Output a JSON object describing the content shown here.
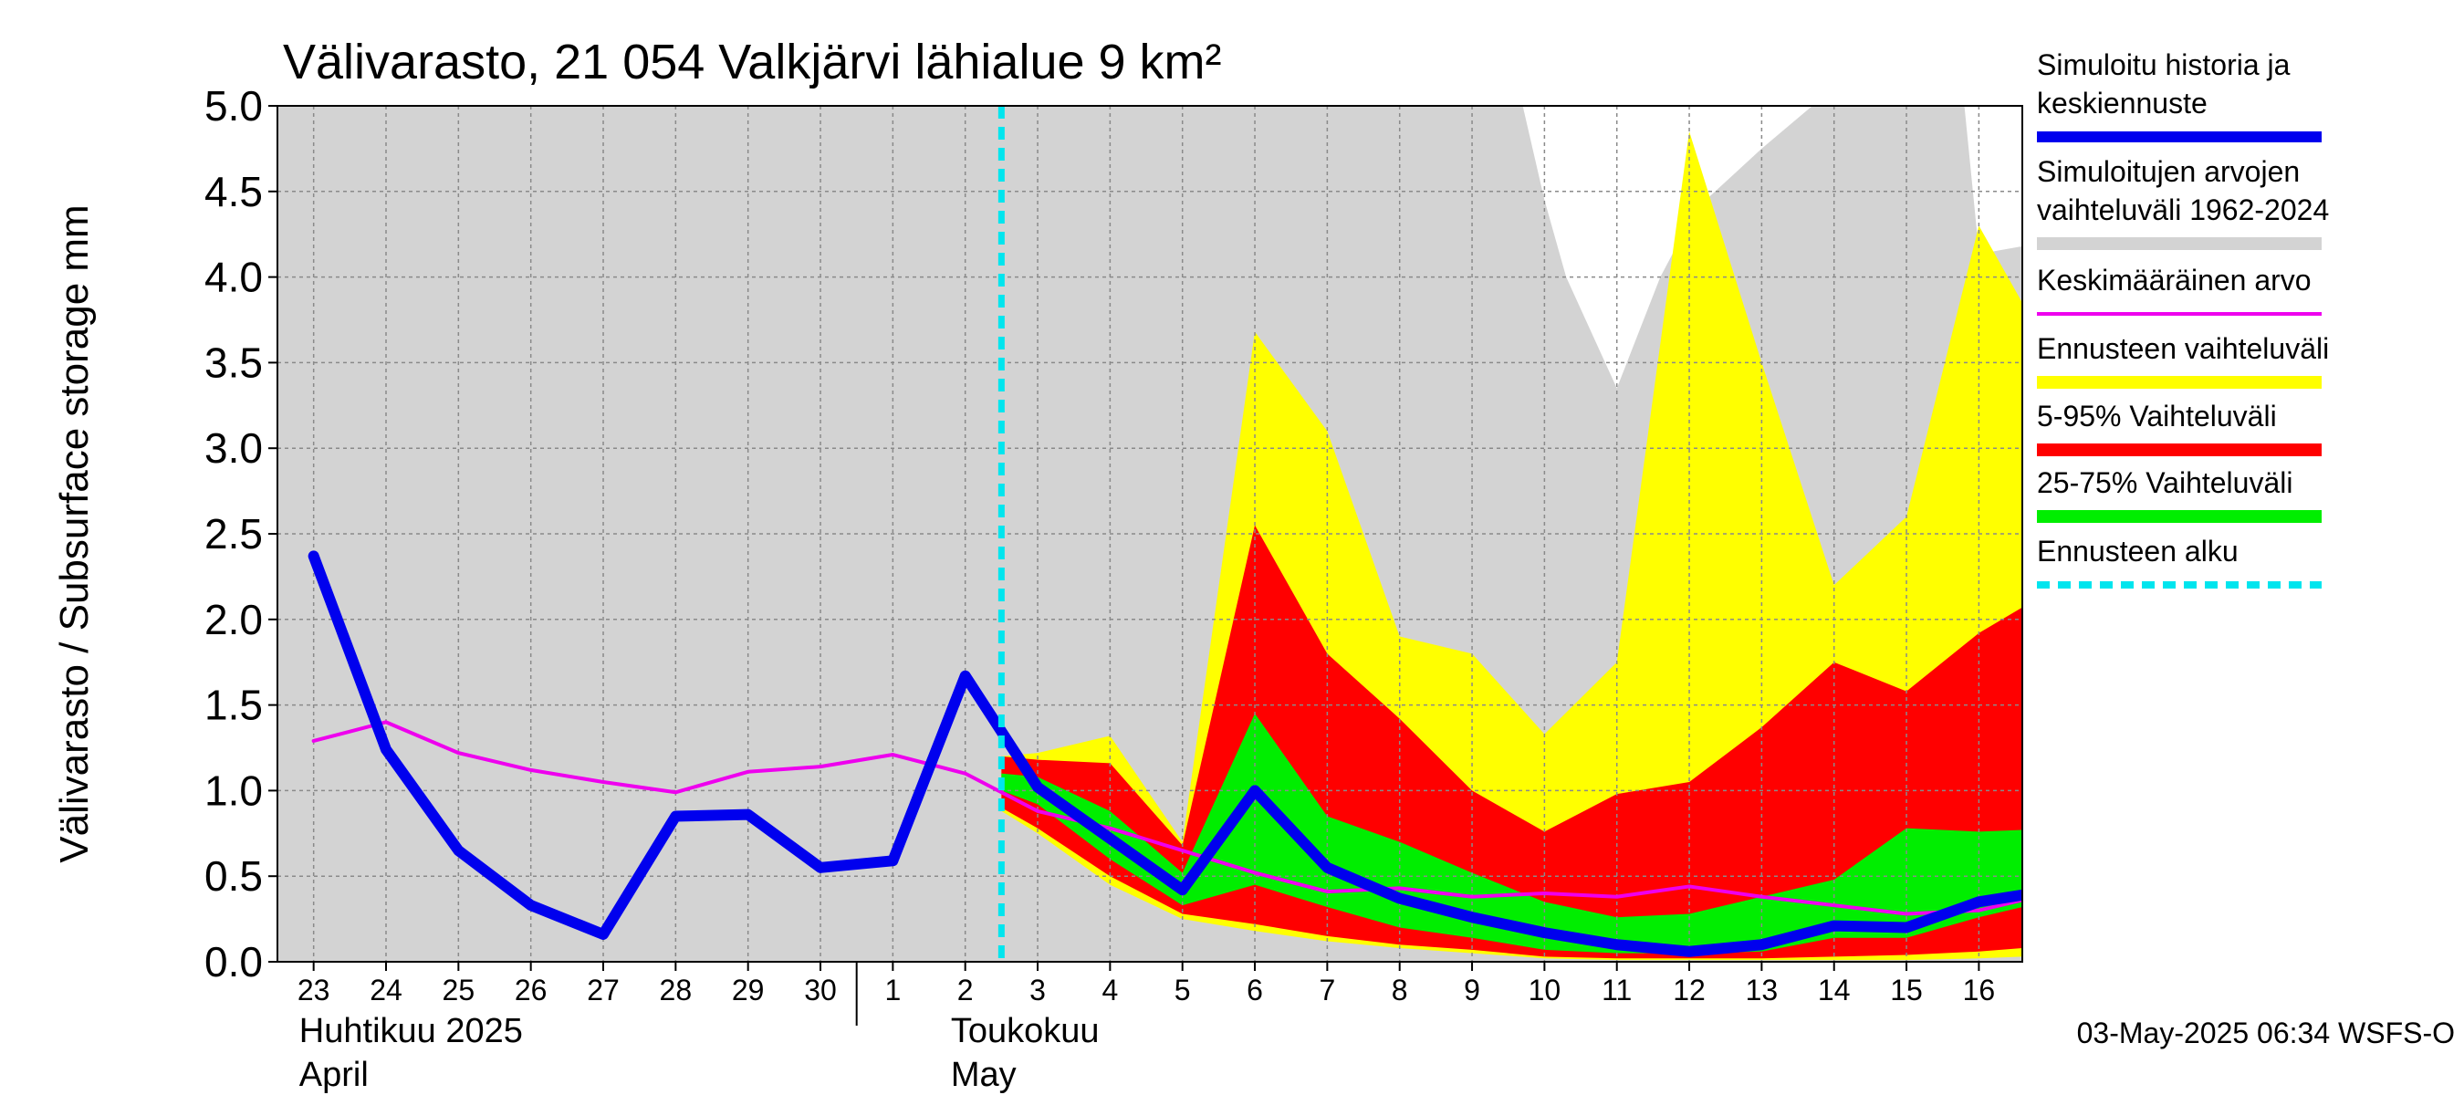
{
  "chart_data": {
    "type": "area",
    "title": "Välivarasto, 21 054 Valkjärvi lähialue 9 km²",
    "ylabel": "Välivarasto / Subsurface storage  mm",
    "ylim": [
      0.0,
      5.0
    ],
    "yticks": [
      "0.0",
      "0.5",
      "1.0",
      "1.5",
      "2.0",
      "2.5",
      "3.0",
      "3.5",
      "4.0",
      "4.5",
      "5.0"
    ],
    "xlim": [
      -0.5,
      23.6
    ],
    "xticks": [
      {
        "x": 0,
        "label": "23"
      },
      {
        "x": 1,
        "label": "24"
      },
      {
        "x": 2,
        "label": "25"
      },
      {
        "x": 3,
        "label": "26"
      },
      {
        "x": 4,
        "label": "27"
      },
      {
        "x": 5,
        "label": "28"
      },
      {
        "x": 6,
        "label": "29"
      },
      {
        "x": 7,
        "label": "30"
      },
      {
        "x": 8,
        "label": "1"
      },
      {
        "x": 9,
        "label": "2"
      },
      {
        "x": 10,
        "label": "3"
      },
      {
        "x": 11,
        "label": "4"
      },
      {
        "x": 12,
        "label": "5"
      },
      {
        "x": 13,
        "label": "6"
      },
      {
        "x": 14,
        "label": "7"
      },
      {
        "x": 15,
        "label": "8"
      },
      {
        "x": 16,
        "label": "9"
      },
      {
        "x": 17,
        "label": "10"
      },
      {
        "x": 18,
        "label": "11"
      },
      {
        "x": 19,
        "label": "12"
      },
      {
        "x": 20,
        "label": "13"
      },
      {
        "x": 21,
        "label": "14"
      },
      {
        "x": 22,
        "label": "15"
      },
      {
        "x": 23,
        "label": "16"
      }
    ],
    "month_labels": [
      {
        "x": -0.2,
        "line1": "Huhtikuu  2025",
        "line2": "April"
      },
      {
        "x": 8.8,
        "line1": "Toukokuu",
        "line2": "May"
      }
    ],
    "month_divider_x": 7.5,
    "forecast_start_x": 9.5,
    "grid": true,
    "legend_position": "right",
    "legend": [
      {
        "label": "Simuloitu historia ja keskiennuste",
        "color": "#0000ee",
        "style": "thick"
      },
      {
        "label": "Simuloitujen arvojen vaihteluväli 1962-2024",
        "color": "#d3d3d3",
        "style": "band"
      },
      {
        "label": "Keskimääräinen arvo",
        "color": "#ee00ee",
        "style": "thin"
      },
      {
        "label": "Ennusteen vaihteluväli",
        "color": "#ffff00",
        "style": "band"
      },
      {
        "label": "5-95% Vaihteluväli",
        "color": "#ff0000",
        "style": "band"
      },
      {
        "label": "25-75% Vaihteluväli",
        "color": "#00ee00",
        "style": "band"
      },
      {
        "label": "Ennusteen alku",
        "color": "#00e5ee",
        "style": "dashed"
      }
    ],
    "series": [
      {
        "name": "Simuloitujen arvojen vaihteluväli 1962-2024",
        "kind": "band",
        "color": "#d3d3d3",
        "x": [
          -0.5,
          16.3,
          16.7,
          17.3,
          18.0,
          18.6,
          19.1,
          20.0,
          20.7,
          21.4,
          22.0,
          22.4,
          22.8,
          23.0,
          23.6
        ],
        "low": [
          0,
          0,
          0,
          0,
          0,
          0,
          0,
          0,
          0,
          0,
          0,
          0,
          0,
          0,
          0
        ],
        "high": [
          5,
          5,
          5,
          5,
          5,
          5,
          5,
          5,
          5,
          5,
          5,
          5,
          5,
          5,
          5
        ],
        "gaps": [
          {
            "x": [
              16.7,
              17.0,
              17.3,
              18.0,
              18.6,
              19.1,
              20.0,
              20.7,
              20.7
            ],
            "high": [
              5.0,
              5.0,
              5.0,
              5.0,
              5.0,
              5.0,
              5.0,
              5.0,
              5.0
            ],
            "low": [
              5.0,
              4.45,
              4.0,
              3.35,
              4.0,
              4.4,
              4.75,
              5.0,
              5.0
            ]
          },
          {
            "x": [
              22.8,
              23.0,
              23.2,
              23.6
            ],
            "high": [
              5.0,
              5.0,
              5.0,
              5.0
            ],
            "low": [
              5.0,
              4.15,
              4.15,
              4.18
            ]
          }
        ]
      },
      {
        "name": "Ennusteen vaihteluväli",
        "kind": "band",
        "color": "#ffff00",
        "x": [
          9.5,
          10,
          11,
          12,
          13,
          14,
          15,
          16,
          17,
          18,
          19,
          20,
          21,
          22,
          23,
          23.6
        ],
        "low": [
          0.88,
          0.75,
          0.45,
          0.25,
          0.18,
          0.12,
          0.08,
          0.05,
          0.02,
          0.01,
          0.01,
          0.01,
          0.01,
          0.01,
          0.02,
          0.03
        ],
        "high": [
          1.2,
          1.22,
          1.32,
          0.7,
          3.68,
          3.1,
          1.9,
          1.8,
          1.33,
          1.75,
          4.85,
          3.5,
          2.2,
          2.6,
          4.3,
          3.85
        ]
      },
      {
        "name": "5-95% Vaihteluväli",
        "kind": "band",
        "color": "#ff0000",
        "x": [
          9.5,
          10,
          11,
          12,
          13,
          14,
          15,
          16,
          17,
          18,
          19,
          20,
          21,
          22,
          23,
          23.6
        ],
        "low": [
          0.9,
          0.78,
          0.5,
          0.28,
          0.22,
          0.15,
          0.1,
          0.07,
          0.03,
          0.02,
          0.02,
          0.02,
          0.03,
          0.04,
          0.06,
          0.08
        ],
        "high": [
          1.2,
          1.18,
          1.16,
          0.68,
          2.55,
          1.8,
          1.42,
          1.0,
          0.76,
          0.98,
          1.05,
          1.37,
          1.75,
          1.58,
          1.92,
          2.07
        ]
      },
      {
        "name": "25-75% Vaihteluväli",
        "kind": "band",
        "color": "#00ee00",
        "x": [
          9.5,
          10,
          11,
          12,
          13,
          14,
          15,
          16,
          17,
          18,
          19,
          20,
          21,
          22,
          23,
          23.6
        ],
        "low": [
          1.0,
          0.92,
          0.6,
          0.33,
          0.45,
          0.32,
          0.2,
          0.14,
          0.07,
          0.05,
          0.05,
          0.06,
          0.14,
          0.14,
          0.26,
          0.32
        ],
        "high": [
          1.1,
          1.08,
          0.88,
          0.52,
          1.45,
          0.85,
          0.7,
          0.52,
          0.35,
          0.26,
          0.28,
          0.38,
          0.48,
          0.78,
          0.76,
          0.77
        ]
      },
      {
        "name": "Keskimääräinen arvo",
        "kind": "line",
        "color": "#ee00ee",
        "width": 4,
        "x": [
          0,
          1,
          2,
          3,
          4,
          5,
          6,
          7,
          8,
          9,
          10,
          11,
          12,
          13,
          14,
          15,
          16,
          17,
          18,
          19,
          20,
          21,
          22,
          23,
          23.6
        ],
        "y": [
          1.29,
          1.4,
          1.22,
          1.12,
          1.05,
          0.99,
          1.11,
          1.14,
          1.21,
          1.1,
          0.88,
          0.78,
          0.65,
          0.52,
          0.41,
          0.43,
          0.38,
          0.4,
          0.38,
          0.44,
          0.38,
          0.33,
          0.28,
          0.3,
          0.36
        ]
      },
      {
        "name": "Simuloitu historia ja keskiennuste",
        "kind": "line",
        "color": "#0000ee",
        "width": 12,
        "x": [
          0,
          1,
          2,
          3,
          4,
          5,
          6,
          7,
          8,
          9,
          10,
          11,
          12,
          13,
          14,
          15,
          16,
          17,
          18,
          19,
          20,
          21,
          22,
          23,
          23.6
        ],
        "y": [
          2.37,
          1.24,
          0.65,
          0.33,
          0.16,
          0.85,
          0.86,
          0.55,
          0.59,
          1.67,
          1.02,
          0.72,
          0.42,
          1.0,
          0.55,
          0.37,
          0.26,
          0.17,
          0.1,
          0.06,
          0.1,
          0.21,
          0.2,
          0.35,
          0.39
        ]
      }
    ],
    "forecast_line": {
      "name": "Ennusteen alku",
      "color": "#00e5ee"
    },
    "timestamp": "03-May-2025 06:34 WSFS-O"
  }
}
